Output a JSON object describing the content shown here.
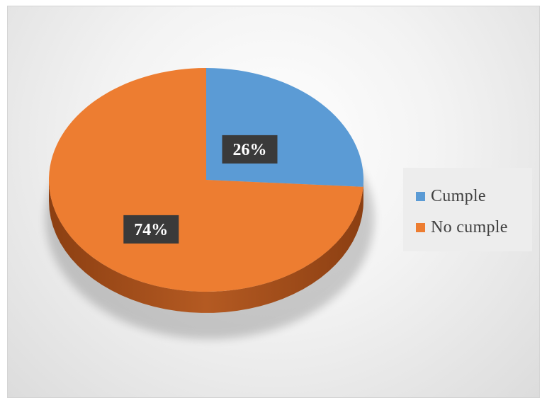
{
  "chart_data": {
    "type": "pie",
    "title": "",
    "categories": [
      "Cumple",
      "No cumple"
    ],
    "values": [
      26,
      74
    ],
    "data_labels": [
      "26%",
      "74%"
    ],
    "colors": [
      "#5b9bd5",
      "#ed7d31"
    ],
    "side_colors": [
      "#3f76a8",
      "#a8501a"
    ],
    "legend_position": "right"
  }
}
